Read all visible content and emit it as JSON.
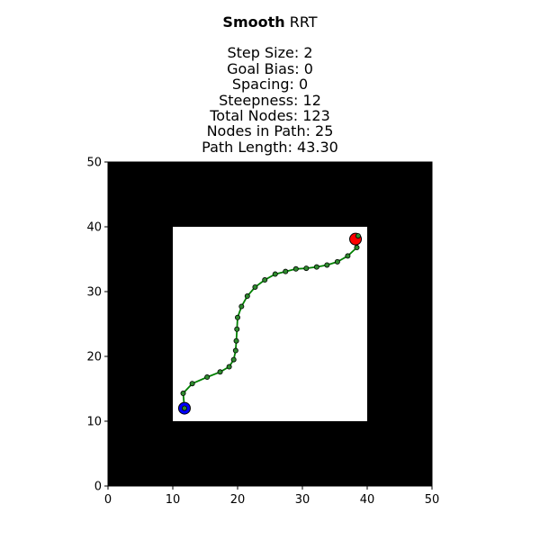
{
  "chart_data": {
    "type": "scatter",
    "title": {
      "bold": "Smooth",
      "rest": "RRT",
      "lines": [
        "Step Size: 2",
        "Goal Bias: 0",
        "Spacing: 0",
        "Steepness: 12",
        "Total Nodes: 123",
        "Nodes in Path: 25",
        "Path Length: 43.30"
      ]
    },
    "xlim": [
      0,
      50
    ],
    "ylim": [
      0,
      50
    ],
    "x_ticks": [
      "0",
      "10",
      "20",
      "30",
      "40",
      "50"
    ],
    "y_ticks": [
      "0",
      "10",
      "20",
      "30",
      "40",
      "50"
    ],
    "grid": false,
    "obstacle_color": "#000000",
    "free_space": {
      "x": [
        10,
        40
      ],
      "y": [
        10,
        40
      ],
      "color": "#ffffff"
    },
    "path": {
      "line_color": "#008000",
      "node_color": "#2e8b2e",
      "points": [
        [
          11.8,
          12.0
        ],
        [
          11.6,
          14.3
        ],
        [
          13.0,
          15.8
        ],
        [
          15.3,
          16.8
        ],
        [
          17.3,
          17.6
        ],
        [
          18.7,
          18.4
        ],
        [
          19.4,
          19.5
        ],
        [
          19.7,
          20.9
        ],
        [
          19.8,
          22.4
        ],
        [
          19.9,
          24.2
        ],
        [
          20.0,
          26.0
        ],
        [
          20.6,
          27.7
        ],
        [
          21.5,
          29.3
        ],
        [
          22.7,
          30.7
        ],
        [
          24.2,
          31.8
        ],
        [
          25.8,
          32.7
        ],
        [
          27.4,
          33.1
        ],
        [
          29.0,
          33.5
        ],
        [
          30.6,
          33.6
        ],
        [
          32.2,
          33.8
        ],
        [
          33.8,
          34.1
        ],
        [
          35.4,
          34.6
        ],
        [
          37.0,
          35.5
        ],
        [
          38.4,
          36.8
        ],
        [
          38.6,
          38.6
        ]
      ]
    },
    "start": {
      "x": 11.8,
      "y": 12.0,
      "color": "#0000ff"
    },
    "goal": {
      "x": 38.2,
      "y": 38.1,
      "color": "#ff0000"
    }
  }
}
